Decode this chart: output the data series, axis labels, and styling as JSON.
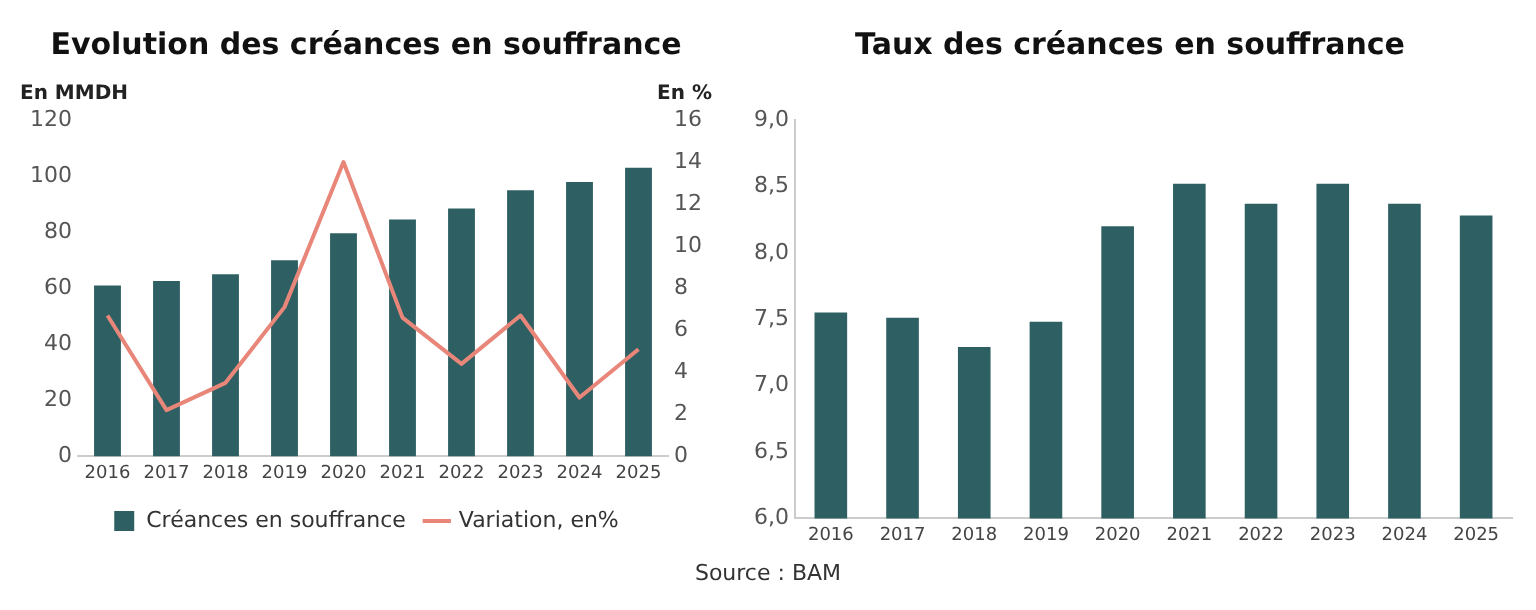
{
  "chart_data": [
    {
      "type": "bar",
      "title": "Evolution des créances en souffrance",
      "ylabel": "En MMDH",
      "y2label": "En %",
      "categories": [
        "2016",
        "2017",
        "2018",
        "2019",
        "2020",
        "2021",
        "2022",
        "2023",
        "2024",
        "2025"
      ],
      "series": [
        {
          "name": "Créances en souffrance",
          "color": "#2e6063",
          "values": [
            61,
            62.6,
            65,
            70,
            79.6,
            84.5,
            88.4,
            94.9,
            97.9,
            103
          ]
        },
        {
          "name": "Variation, en%",
          "type": "line",
          "axis": "y2",
          "color": "#e8867a",
          "values": [
            6.7,
            2.2,
            3.5,
            7.1,
            14,
            6.6,
            4.4,
            6.7,
            2.8,
            5.1
          ]
        }
      ],
      "ylim": [
        0,
        120
      ],
      "yticks": [
        0,
        20,
        40,
        60,
        80,
        100,
        120
      ],
      "y2lim": [
        0,
        16
      ],
      "y2ticks": [
        0,
        2,
        4,
        6,
        8,
        10,
        12,
        14,
        16
      ],
      "legend": "bottom",
      "marker": "none",
      "grid": false,
      "annotations": [
        "Source : BAM"
      ]
    },
    {
      "type": "bar",
      "title": "Taux des créances en souffrance",
      "categories": [
        "2016",
        "2017",
        "2018",
        "2019",
        "2020",
        "2021",
        "2022",
        "2023",
        "2024",
        "2025"
      ],
      "series": [
        {
          "color": "#2e6063",
          "values": [
            7.55,
            7.51,
            7.29,
            7.48,
            8.2,
            8.52,
            8.37,
            8.52,
            8.37,
            8.28
          ]
        }
      ],
      "ylim": [
        6,
        9
      ],
      "yticks": [
        {
          "value": 6,
          "label": "6,0"
        },
        {
          "value": 6.5,
          "label": "6,5"
        },
        {
          "value": 7,
          "label": "7,0"
        },
        {
          "value": 7.5,
          "label": "7,5"
        },
        {
          "value": 8,
          "label": "8,0"
        },
        {
          "value": 8.5,
          "label": "8,5"
        },
        {
          "value": 9,
          "label": "9,0"
        }
      ],
      "legend": false,
      "grid": false
    }
  ]
}
